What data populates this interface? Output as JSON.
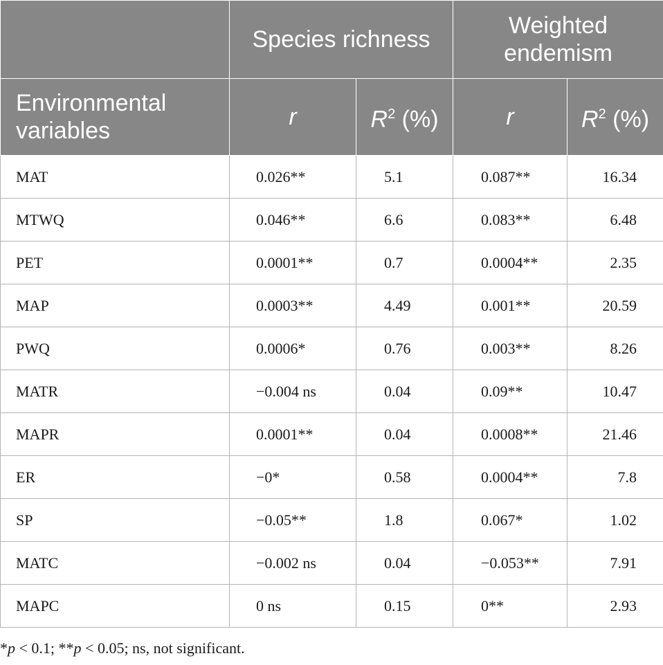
{
  "header": {
    "group_species": "Species richness",
    "group_endemism": "Weighted endemism",
    "env_label": "Environmental variables",
    "r_label": "r",
    "r2_label": "R",
    "r2_sup": "2",
    "r2_unit": " (%)"
  },
  "rows": [
    {
      "variable": "MAT",
      "r_species": "0.026**",
      "r2_species": "5.1",
      "r_endemism": "0.087**",
      "r2_endemism": "16.34"
    },
    {
      "variable": "MTWQ",
      "r_species": "0.046**",
      "r2_species": "6.6",
      "r_endemism": "0.083**",
      "r2_endemism": "6.48"
    },
    {
      "variable": "PET",
      "r_species": "0.0001**",
      "r2_species": "0.7",
      "r_endemism": "0.0004**",
      "r2_endemism": "2.35"
    },
    {
      "variable": "MAP",
      "r_species": "0.0003**",
      "r2_species": "4.49",
      "r_endemism": "0.001**",
      "r2_endemism": "20.59"
    },
    {
      "variable": "PWQ",
      "r_species": "0.0006*",
      "r2_species": "0.76",
      "r_endemism": "0.003**",
      "r2_endemism": "8.26"
    },
    {
      "variable": "MATR",
      "r_species": "−0.004 ns",
      "r2_species": "0.04",
      "r_endemism": "0.09**",
      "r2_endemism": "10.47"
    },
    {
      "variable": "MAPR",
      "r_species": "0.0001**",
      "r2_species": "0.04",
      "r_endemism": "0.0008**",
      "r2_endemism": "21.46"
    },
    {
      "variable": "ER",
      "r_species": "−0*",
      "r2_species": "0.58",
      "r_endemism": "0.0004**",
      "r2_endemism": "7.8"
    },
    {
      "variable": "SP",
      "r_species": "−0.05**",
      "r2_species": "1.8",
      "r_endemism": "0.067*",
      "r2_endemism": "1.02"
    },
    {
      "variable": "MATC",
      "r_species": "−0.002 ns",
      "r2_species": "0.04",
      "r_endemism": "−0.053**",
      "r2_endemism": "7.91"
    },
    {
      "variable": "MAPC",
      "r_species": "0 ns",
      "r2_species": "0.15",
      "r_endemism": "0**",
      "r2_endemism": "2.93"
    }
  ],
  "footnote": {
    "star1": "*",
    "p1": "p",
    "t1": " < 0.1; **",
    "p2": "p",
    "t2": " < 0.05; ns, not significant."
  }
}
